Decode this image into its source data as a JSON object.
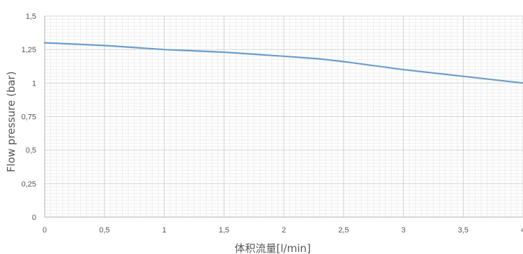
{
  "chart_data": {
    "type": "line",
    "xlabel": "体积流量[l/min]",
    "ylabel": "Flow pressure (bar)",
    "xlim": [
      0,
      4
    ],
    "ylim": [
      0,
      1.5
    ],
    "x_ticks": [
      "0",
      "0,5",
      "1",
      "1,5",
      "2",
      "2,5",
      "3",
      "3,5",
      "4"
    ],
    "y_ticks": [
      "0",
      "0,25",
      "0,5",
      "0,75",
      "1",
      "1,25",
      "1,5"
    ],
    "grid": true,
    "series": [
      {
        "color": "#6a9ccc",
        "x": [
          0,
          0.5,
          1.0,
          1.5,
          2.0,
          2.3,
          2.5,
          3.0,
          3.5,
          4.0
        ],
        "y": [
          1.3,
          1.28,
          1.25,
          1.23,
          1.2,
          1.18,
          1.16,
          1.1,
          1.05,
          1.0
        ]
      }
    ]
  }
}
